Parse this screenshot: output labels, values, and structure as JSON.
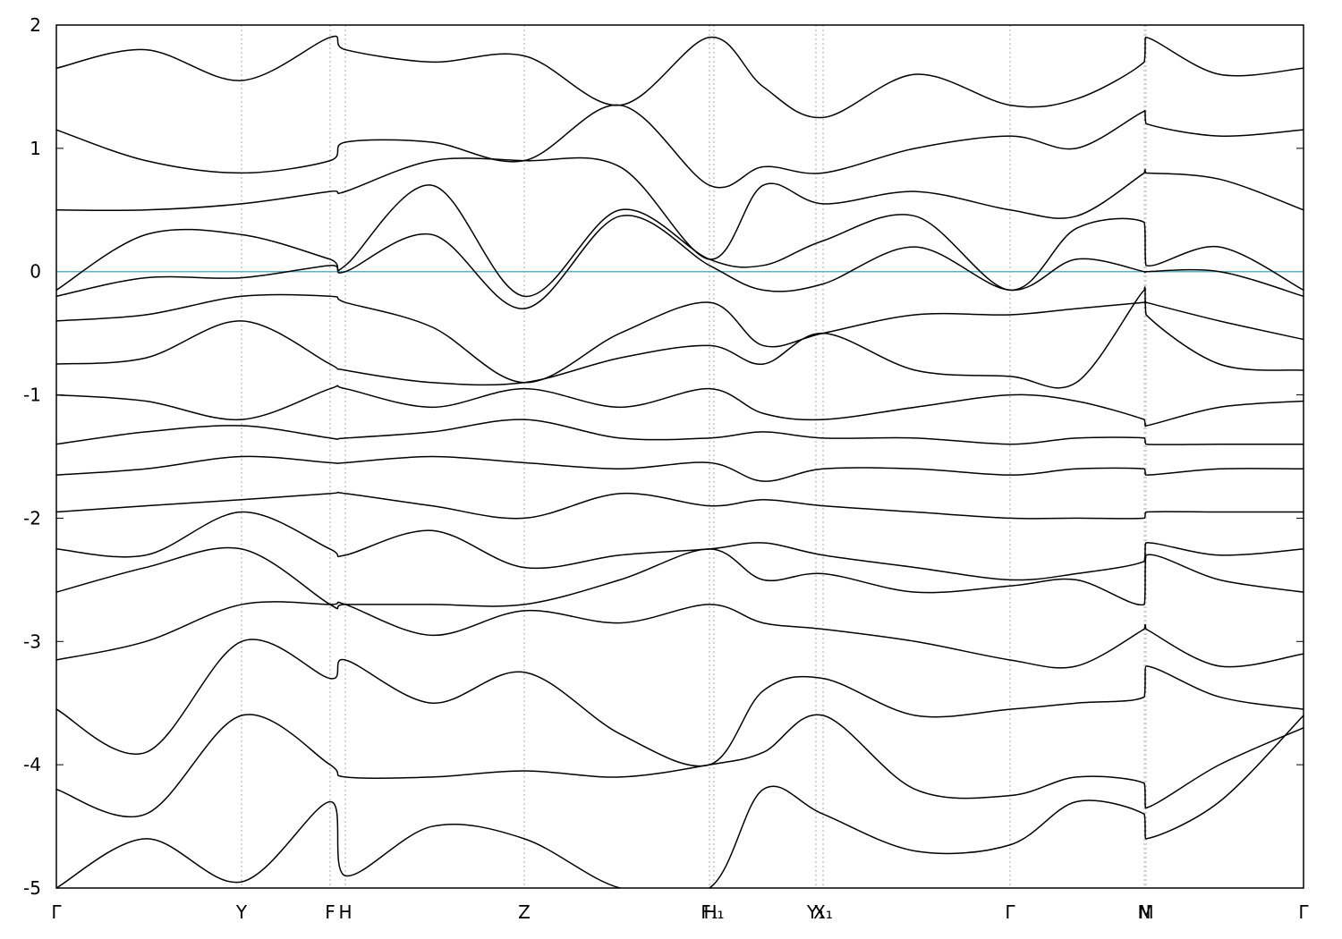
{
  "chart_data": {
    "type": "line",
    "color": "#000000",
    "fermi_level": 0,
    "fermi_color": "#5fb4c4",
    "grid": true,
    "xlim": [
      0,
      13.94
    ],
    "ylim": [
      -5,
      2
    ],
    "yticks": [
      -5,
      -4,
      -3,
      -2,
      -1,
      0,
      1,
      2
    ],
    "xticks": [
      {
        "value": 0,
        "label": "Γ"
      },
      {
        "value": 2.07,
        "label": "Y"
      },
      {
        "value": 3.06,
        "label": "F"
      },
      {
        "value": 3.23,
        "label": "H"
      },
      {
        "value": 5.23,
        "label": "Z"
      },
      {
        "value": 7.3,
        "label": "F₁"
      },
      {
        "value": 7.35,
        "label": "H₁"
      },
      {
        "value": 8.49,
        "label": "Y₁"
      },
      {
        "value": 8.57,
        "label": "X₁"
      },
      {
        "value": 10.66,
        "label": "Γ"
      },
      {
        "value": 12.16,
        "label": "N"
      },
      {
        "value": 12.18,
        "label": "M"
      },
      {
        "value": 13.94,
        "label": "Γ"
      }
    ],
    "x": [
      0,
      1.0,
      2.07,
      3.06,
      3.23,
      4.2,
      5.23,
      6.3,
      7.3,
      7.9,
      8.57,
      9.6,
      10.66,
      11.4,
      12.16,
      12.18,
      13.0,
      13.94
    ],
    "series": [
      {
        "values": [
          -0.15,
          0.3,
          0.3,
          0.1,
          0.05,
          0.7,
          -0.2,
          0.5,
          0.1,
          0.05,
          0.25,
          0.45,
          -0.15,
          0.35,
          0.4,
          0.05,
          0.2,
          -0.15
        ]
      },
      {
        "values": [
          -0.2,
          -0.05,
          -0.05,
          0.05,
          0.0,
          0.3,
          -0.3,
          0.45,
          0.05,
          -0.15,
          -0.1,
          0.2,
          -0.15,
          0.1,
          0.0,
          0.0,
          0.0,
          -0.2
        ]
      },
      {
        "values": [
          0.5,
          0.5,
          0.55,
          0.65,
          0.65,
          0.9,
          0.9,
          0.85,
          0.1,
          0.7,
          0.55,
          0.65,
          0.5,
          0.45,
          0.8,
          0.8,
          0.75,
          0.5
        ]
      },
      {
        "values": [
          1.15,
          0.9,
          0.8,
          0.9,
          1.05,
          1.05,
          0.9,
          1.35,
          0.7,
          0.85,
          0.8,
          1.0,
          1.1,
          1.0,
          1.3,
          1.2,
          1.1,
          1.15
        ]
      },
      {
        "values": [
          1.65,
          1.8,
          1.55,
          1.9,
          1.8,
          1.7,
          1.75,
          1.35,
          1.9,
          1.5,
          1.25,
          1.6,
          1.35,
          1.4,
          1.7,
          1.9,
          1.6,
          1.65
        ]
      },
      {
        "values": [
          -0.4,
          -0.35,
          -0.2,
          -0.2,
          -0.25,
          -0.45,
          -0.9,
          -0.5,
          -0.25,
          -0.6,
          -0.5,
          -0.35,
          -0.35,
          -0.3,
          -0.25,
          -0.25,
          -0.4,
          -0.55
        ]
      },
      {
        "values": [
          -0.75,
          -0.7,
          -0.4,
          -0.75,
          -0.8,
          -0.9,
          -0.9,
          -0.7,
          -0.6,
          -0.75,
          -0.5,
          -0.8,
          -0.85,
          -0.9,
          -0.15,
          -0.35,
          -0.75,
          -0.8
        ]
      },
      {
        "values": [
          -1.0,
          -1.05,
          -1.2,
          -0.95,
          -0.95,
          -1.1,
          -0.95,
          -1.1,
          -0.95,
          -1.15,
          -1.2,
          -1.1,
          -1.0,
          -1.05,
          -1.2,
          -1.25,
          -1.1,
          -1.05
        ]
      },
      {
        "values": [
          -1.4,
          -1.3,
          -1.25,
          -1.35,
          -1.35,
          -1.3,
          -1.2,
          -1.35,
          -1.35,
          -1.3,
          -1.35,
          -1.35,
          -1.4,
          -1.35,
          -1.35,
          -1.4,
          -1.4,
          -1.4
        ]
      },
      {
        "values": [
          -1.65,
          -1.6,
          -1.5,
          -1.55,
          -1.55,
          -1.5,
          -1.55,
          -1.6,
          -1.55,
          -1.7,
          -1.6,
          -1.6,
          -1.65,
          -1.6,
          -1.6,
          -1.65,
          -1.6,
          -1.6
        ]
      },
      {
        "values": [
          -1.95,
          -1.9,
          -1.85,
          -1.8,
          -1.8,
          -1.9,
          -2.0,
          -1.8,
          -1.9,
          -1.85,
          -1.9,
          -1.95,
          -2.0,
          -2.0,
          -2.0,
          -1.95,
          -1.95,
          -1.95
        ]
      },
      {
        "values": [
          -2.25,
          -2.3,
          -1.95,
          -2.25,
          -2.3,
          -2.1,
          -2.4,
          -2.3,
          -2.25,
          -2.2,
          -2.3,
          -2.4,
          -2.5,
          -2.45,
          -2.35,
          -2.2,
          -2.3,
          -2.25
        ]
      },
      {
        "values": [
          -2.6,
          -2.4,
          -2.25,
          -2.7,
          -2.7,
          -2.7,
          -2.7,
          -2.5,
          -2.25,
          -2.5,
          -2.45,
          -2.6,
          -2.55,
          -2.5,
          -2.7,
          -2.3,
          -2.5,
          -2.6
        ]
      },
      {
        "values": [
          -3.15,
          -3.0,
          -2.7,
          -2.7,
          -2.7,
          -2.95,
          -2.75,
          -2.85,
          -2.7,
          -2.85,
          -2.9,
          -3.0,
          -3.15,
          -3.2,
          -2.9,
          -2.9,
          -3.2,
          -3.1
        ]
      },
      {
        "values": [
          -3.55,
          -3.9,
          -3.0,
          -3.3,
          -3.15,
          -3.5,
          -3.25,
          -3.75,
          -4.0,
          -3.4,
          -3.3,
          -3.6,
          -3.55,
          -3.5,
          -3.45,
          -3.2,
          -3.45,
          -3.55
        ]
      },
      {
        "values": [
          -4.2,
          -4.4,
          -3.6,
          -4.0,
          -4.1,
          -4.1,
          -4.05,
          -4.1,
          -4.0,
          -3.9,
          -3.6,
          -4.2,
          -4.25,
          -4.1,
          -4.15,
          -4.35,
          -4.0,
          -3.7
        ]
      },
      {
        "values": [
          -5.0,
          -4.6,
          -4.95,
          -4.3,
          -4.9,
          -4.5,
          -4.6,
          -5.0,
          -5.0,
          -4.2,
          -4.4,
          -4.7,
          -4.65,
          -4.3,
          -4.4,
          -4.6,
          -4.3,
          -3.6
        ]
      }
    ]
  }
}
